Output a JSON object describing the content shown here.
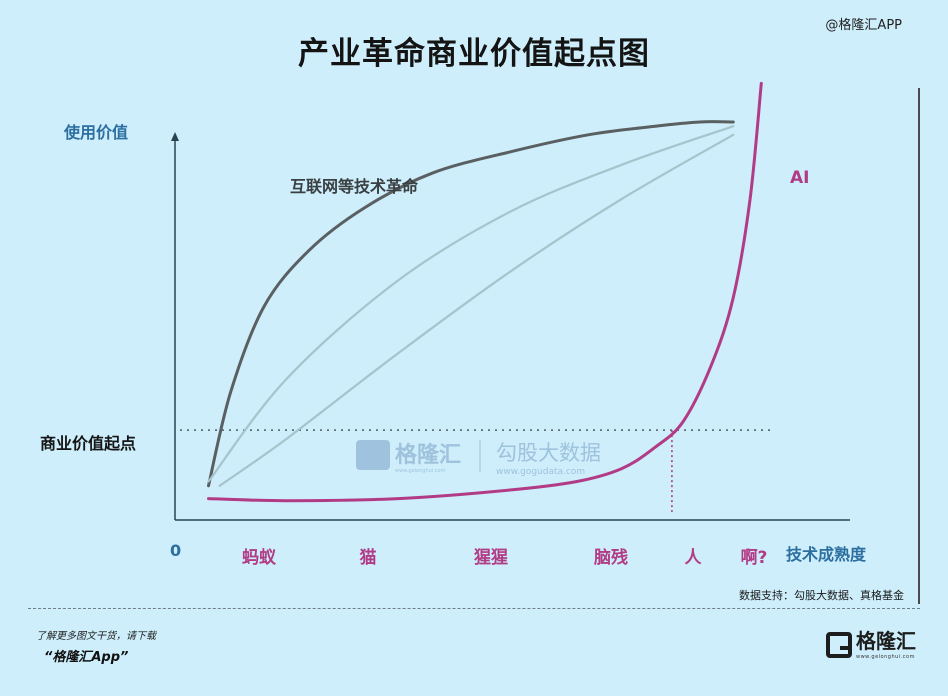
{
  "header": {
    "title": "产业革命商业价值起点图",
    "brand_tag": "@格隆汇APP"
  },
  "chart_data": {
    "type": "line",
    "title": "产业革命商业价值起点图",
    "ylabel": "使用价值",
    "xlabel": "技术成熟度",
    "origin_label": "0",
    "x_categories": [
      "蚂蚁",
      "猫",
      "猩猩",
      "脑残",
      "人",
      "啊?"
    ],
    "xlim": [
      0,
      6
    ],
    "ylim": [
      0,
      10
    ],
    "threshold": {
      "label": "商业价值起点",
      "value": 2.1
    },
    "grid": false,
    "series": [
      {
        "name": "互联网等技术革命",
        "color": "#5a5f62",
        "x": [
          0.3,
          0.5,
          0.8,
          1.2,
          1.7,
          2.3,
          3.0,
          3.7,
          4.3,
          4.7,
          5.0
        ],
        "y": [
          0.8,
          3.0,
          5.0,
          6.3,
          7.3,
          8.1,
          8.6,
          9.0,
          9.2,
          9.3,
          9.3
        ]
      },
      {
        "name": "",
        "color": "#a7c3cc",
        "x": [
          0.3,
          1.0,
          2.0,
          3.0,
          4.0,
          5.0
        ],
        "y": [
          0.9,
          3.3,
          5.6,
          7.2,
          8.3,
          9.2
        ]
      },
      {
        "name": "",
        "color": "#a7c3cc",
        "x": [
          0.4,
          1.0,
          2.0,
          3.0,
          4.0,
          5.0
        ],
        "y": [
          0.8,
          1.9,
          3.9,
          5.8,
          7.5,
          9.0
        ]
      },
      {
        "name": "AI",
        "color": "#b23b86",
        "x": [
          0.3,
          1.0,
          2.0,
          3.0,
          3.6,
          4.0,
          4.3,
          4.55,
          4.8,
          5.0,
          5.15,
          5.25
        ],
        "y": [
          0.5,
          0.45,
          0.5,
          0.7,
          0.9,
          1.2,
          1.7,
          2.3,
          3.6,
          5.2,
          7.5,
          10.2
        ]
      }
    ],
    "annotations": [
      {
        "text": "互联网等技术革命",
        "x": 1.6,
        "y": 8.3
      },
      {
        "text": "AI",
        "x": 5.5,
        "y": 9.3
      }
    ],
    "dashed_drop": {
      "x": 4.45,
      "from_y": 2.1,
      "to_y": 0
    }
  },
  "watermark": {
    "brand": "格隆汇",
    "brand_url": "www.gelonghui.com",
    "partner": "勾股大数据",
    "partner_url": "www.gogudata.com"
  },
  "footer": {
    "source": "数据支持：勾股大数据、真格基金",
    "line1": "了解更多图文干货，请下载",
    "line2": "“格隆汇App”",
    "logo_text": "格隆汇",
    "logo_sub": "www.gelonghui.com"
  },
  "colors": {
    "background": "#cdeefa",
    "axis": "#2a4350",
    "accent_pink": "#b23b86",
    "label_blue": "#2c6fa0"
  }
}
